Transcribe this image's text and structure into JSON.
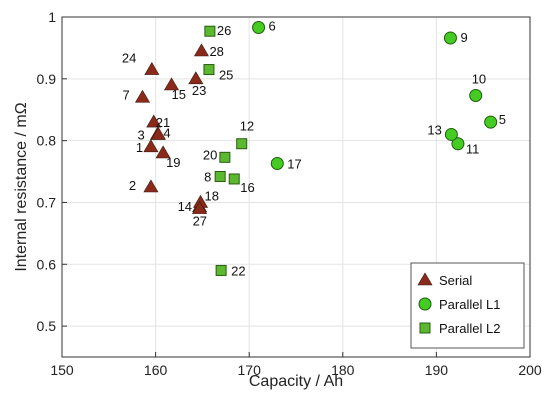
{
  "chart_data": {
    "type": "scatter",
    "xlabel": "Capacity / Ah",
    "ylabel": "Internal resistance / mΩ",
    "xlim": [
      150,
      200
    ],
    "ylim": [
      0.45,
      1.0
    ],
    "xticks": [
      150,
      160,
      170,
      180,
      190,
      200
    ],
    "yticks": [
      0.5,
      0.6,
      0.7,
      0.8,
      0.9,
      1
    ],
    "grid": true,
    "legend_position": "bottom-right",
    "series": [
      {
        "name": "Serial",
        "marker": "triangle",
        "color": "#8B2A1A",
        "points": [
          {
            "id": "1",
            "x": 159.5,
            "y": 0.79
          },
          {
            "id": "2",
            "x": 159.5,
            "y": 0.725
          },
          {
            "id": "3",
            "x": 160.2,
            "y": 0.81
          },
          {
            "id": "4",
            "x": 160.3,
            "y": 0.81
          },
          {
            "id": "7",
            "x": 158.6,
            "y": 0.87
          },
          {
            "id": "14",
            "x": 164.7,
            "y": 0.693
          },
          {
            "id": "15",
            "x": 161.7,
            "y": 0.89
          },
          {
            "id": "18",
            "x": 164.8,
            "y": 0.7
          },
          {
            "id": "19",
            "x": 160.8,
            "y": 0.78
          },
          {
            "id": "21",
            "x": 159.8,
            "y": 0.83
          },
          {
            "id": "23",
            "x": 164.3,
            "y": 0.9
          },
          {
            "id": "24",
            "x": 159.6,
            "y": 0.915
          },
          {
            "id": "27",
            "x": 164.7,
            "y": 0.69
          },
          {
            "id": "28",
            "x": 164.9,
            "y": 0.945
          }
        ]
      },
      {
        "name": "Parallel L1",
        "marker": "circle",
        "color": "#44CC22",
        "points": [
          {
            "id": "5",
            "x": 195.8,
            "y": 0.83
          },
          {
            "id": "6",
            "x": 171.0,
            "y": 0.983
          },
          {
            "id": "9",
            "x": 191.5,
            "y": 0.966
          },
          {
            "id": "10",
            "x": 194.2,
            "y": 0.873
          },
          {
            "id": "11",
            "x": 192.3,
            "y": 0.795
          },
          {
            "id": "13",
            "x": 191.6,
            "y": 0.81
          },
          {
            "id": "17",
            "x": 173.0,
            "y": 0.763
          }
        ]
      },
      {
        "name": "Parallel L2",
        "marker": "square",
        "color": "#5CB82E",
        "points": [
          {
            "id": "8",
            "x": 166.9,
            "y": 0.742
          },
          {
            "id": "12",
            "x": 169.2,
            "y": 0.795
          },
          {
            "id": "16",
            "x": 168.4,
            "y": 0.738
          },
          {
            "id": "20",
            "x": 167.4,
            "y": 0.773
          },
          {
            "id": "22",
            "x": 167.0,
            "y": 0.59
          },
          {
            "id": "25",
            "x": 165.7,
            "y": 0.915
          },
          {
            "id": "26",
            "x": 165.8,
            "y": 0.977
          }
        ]
      }
    ]
  }
}
